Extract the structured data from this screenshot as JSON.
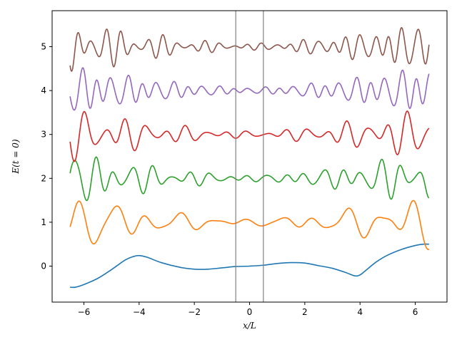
{
  "chart_data": {
    "type": "line",
    "title": "",
    "xlabel": "x/L",
    "ylabel": "E(t = 0)",
    "xlim": [
      -7.15,
      7.15
    ],
    "ylim": [
      -0.82,
      5.82
    ],
    "xticks": [
      -6,
      -4,
      -2,
      0,
      2,
      4,
      6
    ],
    "yticks": [
      0,
      1,
      2,
      3,
      4,
      5
    ],
    "grid": false,
    "legend": "none",
    "x_range": [
      -6.5,
      6.5
    ],
    "vertical_lines": [
      {
        "x": -0.5,
        "color": "#808080"
      },
      {
        "x": 0.5,
        "color": "#808080"
      }
    ],
    "series": [
      {
        "color": "#1f77b4",
        "offset": 0,
        "x": [
          -6.5,
          -6.3,
          -6.0,
          -5.5,
          -5.0,
          -4.5,
          -4.2,
          -4.0,
          -3.7,
          -3.2,
          -2.5,
          -2.0,
          -1.5,
          -1.0,
          -0.5,
          0.0,
          0.5,
          1.0,
          1.5,
          2.0,
          2.5,
          3.0,
          3.5,
          3.8,
          4.0,
          4.3,
          4.6,
          5.0,
          5.5,
          6.0,
          6.3,
          6.5
        ],
        "y": [
          -0.48,
          -0.48,
          -0.42,
          -0.28,
          -0.08,
          0.14,
          0.22,
          0.24,
          0.2,
          0.08,
          -0.03,
          -0.07,
          -0.07,
          -0.04,
          -0.01,
          0.0,
          0.02,
          0.06,
          0.08,
          0.07,
          0.01,
          -0.05,
          -0.15,
          -0.22,
          -0.2,
          -0.05,
          0.1,
          0.25,
          0.38,
          0.47,
          0.5,
          0.5
        ]
      },
      {
        "color": "#ff7f0e",
        "offset": 1,
        "decay": 0.14,
        "components": [
          {
            "amp": 0.35,
            "freq": 5.2,
            "phase": 0.45
          },
          {
            "amp": 0.18,
            "freq": 3.1,
            "phase": 1.9
          },
          {
            "amp": 0.12,
            "freq": 8.3,
            "phase": 0.8
          }
        ]
      },
      {
        "color": "#2ca02c",
        "offset": 2,
        "decay": 0.14,
        "components": [
          {
            "amp": 0.34,
            "freq": 9.1,
            "phase": 0.6
          },
          {
            "amp": 0.17,
            "freq": 6.2,
            "phase": 2.1
          },
          {
            "amp": 0.1,
            "freq": 12.7,
            "phase": 1.2
          }
        ]
      },
      {
        "color": "#d62728",
        "offset": 3,
        "decay": 0.14,
        "components": [
          {
            "amp": 0.33,
            "freq": 8.6,
            "phase": 1.0
          },
          {
            "amp": 0.16,
            "freq": 5.4,
            "phase": 0.3
          },
          {
            "amp": 0.1,
            "freq": 11.8,
            "phase": 2.5
          }
        ]
      },
      {
        "color": "#9467bd",
        "offset": 4,
        "decay": 0.14,
        "components": [
          {
            "amp": 0.33,
            "freq": 11.4,
            "phase": 0.2
          },
          {
            "amp": 0.17,
            "freq": 7.6,
            "phase": 1.5
          },
          {
            "amp": 0.1,
            "freq": 15.2,
            "phase": 2.8
          }
        ]
      },
      {
        "color": "#8c564b",
        "offset": 5,
        "decay": 0.14,
        "components": [
          {
            "amp": 0.32,
            "freq": 12.3,
            "phase": 0.9
          },
          {
            "amp": 0.16,
            "freq": 8.8,
            "phase": 2.3
          },
          {
            "amp": 0.1,
            "freq": 16.1,
            "phase": 0.4
          }
        ]
      }
    ]
  }
}
